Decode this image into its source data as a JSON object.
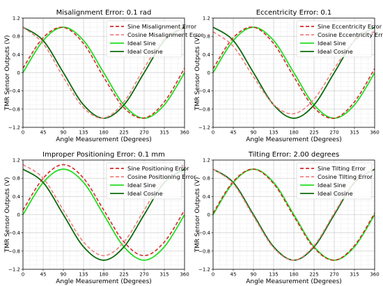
{
  "chart_data": [
    {
      "type": "line",
      "title": "Misalignment Error: 0.1 rad",
      "xlabel": "Angle Measurement (Degrees)",
      "ylabel": "TMR Sensor Outputs (V)",
      "xlim": [
        0,
        360
      ],
      "ylim": [
        -1.2,
        1.2
      ],
      "xticks": [
        0,
        45,
        90,
        135,
        180,
        225,
        270,
        315,
        360
      ],
      "yticks": [
        -1.2,
        -0.8,
        -0.4,
        0,
        0.4,
        0.8,
        1.2
      ],
      "xtick_labels": [
        "0",
        "45",
        "90",
        "135",
        "180",
        "225",
        "270",
        "315",
        "360"
      ],
      "ytick_labels": [
        "−1.2",
        "−0.8",
        "−0.4",
        "0",
        "0.4",
        "0.8",
        "1.2"
      ],
      "grid": true,
      "legend_position": "top-right",
      "x": [
        0,
        45,
        90,
        135,
        180,
        225,
        270,
        315,
        360
      ],
      "series": [
        {
          "name": "Sine Misalignment Error",
          "color": "#d62728",
          "style": "dashed",
          "values": [
            0.1,
            0.77,
            0.995,
            0.64,
            -0.1,
            -0.77,
            -0.995,
            -0.64,
            0.1
          ]
        },
        {
          "name": "Cosine Misalignment Error",
          "color": "#f08080",
          "style": "dashed",
          "values": [
            0.995,
            0.64,
            -0.1,
            -0.77,
            -0.995,
            -0.64,
            0.1,
            0.77,
            0.995
          ]
        },
        {
          "name": "Ideal Sine",
          "color": "#22dd22",
          "style": "solid",
          "values": [
            0,
            0.707,
            1,
            0.707,
            0,
            -0.707,
            -1,
            -0.707,
            0
          ]
        },
        {
          "name": "Ideal Cosine",
          "color": "#0b6b0b",
          "style": "solid",
          "values": [
            1,
            0.707,
            0,
            -0.707,
            -1,
            -0.707,
            0,
            0.707,
            1
          ]
        }
      ]
    },
    {
      "type": "line",
      "title": "Eccentricity Error: 0.1",
      "xlabel": "Angle Measurement (Degrees)",
      "ylabel": "TMR Sensor Outputs (V)",
      "xlim": [
        0,
        360
      ],
      "ylim": [
        -1.2,
        1.2
      ],
      "xticks": [
        0,
        45,
        90,
        135,
        180,
        225,
        270,
        315,
        360
      ],
      "yticks": [
        -1.2,
        -0.8,
        -0.4,
        0,
        0.4,
        0.8,
        1.2
      ],
      "xtick_labels": [
        "0",
        "45",
        "90",
        "135",
        "180",
        "225",
        "270",
        "315",
        "360"
      ],
      "ytick_labels": [
        "−1.2",
        "−0.8",
        "−0.4",
        "0",
        "0.4",
        "0.8",
        "1.2"
      ],
      "grid": true,
      "legend_position": "top-right",
      "x": [
        0,
        45,
        90,
        135,
        180,
        225,
        270,
        315,
        360
      ],
      "series": [
        {
          "name": "Sine Eccentricity Error",
          "color": "#d62728",
          "style": "dashed",
          "values": [
            0.09,
            0.77,
            1.0,
            0.64,
            -0.09,
            -0.77,
            -1.0,
            -0.64,
            0.09
          ]
        },
        {
          "name": "Cosine Eccentricity Error",
          "color": "#f08080",
          "style": "dashed",
          "values": [
            0.9,
            0.58,
            -0.09,
            -0.7,
            -0.9,
            -0.58,
            0.09,
            0.7,
            0.9
          ]
        },
        {
          "name": "Ideal Sine",
          "color": "#22dd22",
          "style": "solid",
          "values": [
            0,
            0.707,
            1,
            0.707,
            0,
            -0.707,
            -1,
            -0.707,
            0
          ]
        },
        {
          "name": "Ideal Cosine",
          "color": "#0b6b0b",
          "style": "solid",
          "values": [
            1,
            0.707,
            0,
            -0.707,
            -1,
            -0.707,
            0,
            0.707,
            1
          ]
        }
      ]
    },
    {
      "type": "line",
      "title": "Improper Positioning Error: 0.1 mm",
      "xlabel": "Angle Measurement (Degrees)",
      "ylabel": "TMR Sensor Outputs (V)",
      "xlim": [
        0,
        360
      ],
      "ylim": [
        -1.2,
        1.2
      ],
      "xticks": [
        0,
        45,
        90,
        135,
        180,
        225,
        270,
        315,
        360
      ],
      "yticks": [
        -1.2,
        -0.8,
        -0.4,
        0,
        0.4,
        0.8,
        1.2
      ],
      "xtick_labels": [
        "0",
        "45",
        "90",
        "135",
        "180",
        "225",
        "270",
        "315",
        "360"
      ],
      "ytick_labels": [
        "−1.2",
        "−0.8",
        "−0.4",
        "0",
        "0.4",
        "0.8",
        "1.2"
      ],
      "grid": true,
      "legend_position": "top-right",
      "x": [
        0,
        45,
        90,
        135,
        180,
        225,
        270,
        315,
        360
      ],
      "series": [
        {
          "name": "Sine Positioning Error",
          "color": "#d62728",
          "style": "dashed",
          "values": [
            0.1,
            0.8,
            1.1,
            0.8,
            0.1,
            -0.6,
            -0.9,
            -0.6,
            0.1
          ]
        },
        {
          "name": "Cosine Positioning Error",
          "color": "#f08080",
          "style": "dashed",
          "values": [
            1.1,
            0.8,
            0.1,
            -0.6,
            -0.9,
            -0.6,
            0.1,
            0.8,
            1.1
          ]
        },
        {
          "name": "Ideal Sine",
          "color": "#22dd22",
          "style": "solid",
          "values": [
            0,
            0.707,
            1,
            0.707,
            0,
            -0.707,
            -1,
            -0.707,
            0
          ]
        },
        {
          "name": "Ideal Cosine",
          "color": "#0b6b0b",
          "style": "solid",
          "values": [
            1,
            0.707,
            0,
            -0.707,
            -1,
            -0.707,
            0,
            0.707,
            1
          ]
        }
      ]
    },
    {
      "type": "line",
      "title": "Tilting Error: 2.00 degrees",
      "xlabel": "Angle Measurement (Degrees)",
      "ylabel": "TMR Sensor Outputs (V)",
      "xlim": [
        0,
        360
      ],
      "ylim": [
        -1.2,
        1.2
      ],
      "xticks": [
        0,
        45,
        90,
        135,
        180,
        225,
        270,
        315,
        360
      ],
      "yticks": [
        -1.2,
        -0.8,
        -0.4,
        0,
        0.4,
        0.8,
        1.2
      ],
      "xtick_labels": [
        "0",
        "45",
        "90",
        "135",
        "180",
        "225",
        "270",
        "315",
        "360"
      ],
      "ytick_labels": [
        "−1.2",
        "−0.8",
        "−0.4",
        "0",
        "0.4",
        "0.8",
        "1.2"
      ],
      "grid": true,
      "legend_position": "top-right",
      "x": [
        0,
        45,
        90,
        135,
        180,
        225,
        270,
        315,
        360
      ],
      "series": [
        {
          "name": "Sine Tilting Error",
          "color": "#d62728",
          "style": "dashed",
          "values": [
            0.035,
            0.73,
            1.0,
            0.68,
            -0.035,
            -0.73,
            -1.0,
            -0.68,
            0.035
          ]
        },
        {
          "name": "Cosine Tilting Error",
          "color": "#f08080",
          "style": "dashed",
          "values": [
            1.0,
            0.68,
            -0.035,
            -0.73,
            -1.0,
            -0.68,
            0.035,
            0.73,
            1.0
          ]
        },
        {
          "name": "Ideal Sine",
          "color": "#22dd22",
          "style": "solid",
          "values": [
            0,
            0.707,
            1,
            0.707,
            0,
            -0.707,
            -1,
            -0.707,
            0
          ]
        },
        {
          "name": "Ideal Cosine",
          "color": "#0b6b0b",
          "style": "solid",
          "values": [
            1,
            0.707,
            0,
            -0.707,
            -1,
            -0.707,
            0,
            0.707,
            1
          ]
        }
      ]
    }
  ]
}
